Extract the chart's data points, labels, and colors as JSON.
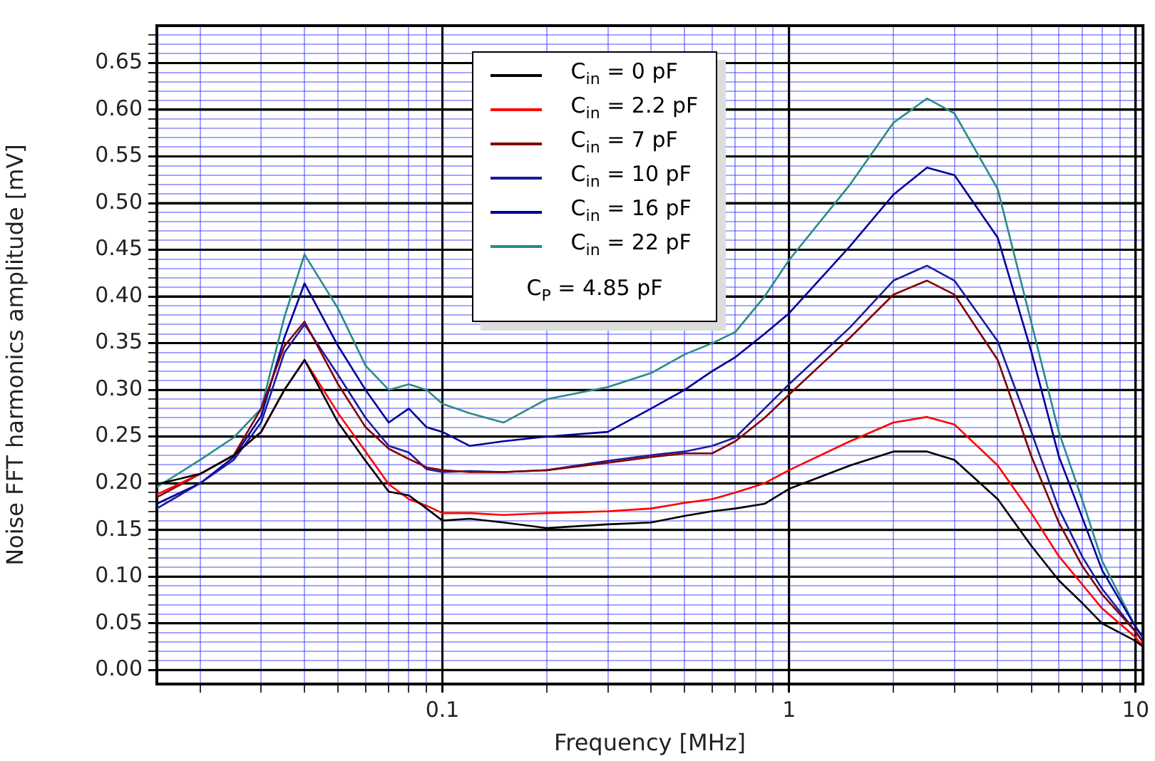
{
  "chart_data": {
    "type": "line",
    "xlabel": "Frequency [MHz]",
    "ylabel": "Noise FFT harmonics amplitude [mV]",
    "log": "x",
    "grid": true,
    "legend": "top",
    "marker": "none",
    "line_style": "solid",
    "annotations": [
      "C$_{P}$ = 4.85 pF"
    ],
    "xlim": [
      0.015,
      10.5
    ],
    "ylim": [
      -0.015,
      0.69
    ],
    "xticks": [
      {
        "value": 0.02,
        "label": null
      },
      {
        "value": 0.03,
        "label": null
      },
      {
        "value": 0.04,
        "label": null
      },
      {
        "value": 0.05,
        "label": null
      },
      {
        "value": 0.06,
        "label": null
      },
      {
        "value": 0.07,
        "label": null
      },
      {
        "value": 0.08,
        "label": null
      },
      {
        "value": 0.09,
        "label": null
      },
      0.1,
      {
        "value": 0.2,
        "label": null
      },
      {
        "value": 0.3,
        "label": null
      },
      {
        "value": 0.4,
        "label": null
      },
      {
        "value": 0.5,
        "label": null
      },
      {
        "value": 0.6,
        "label": null
      },
      {
        "value": 0.7,
        "label": null
      },
      {
        "value": 0.8,
        "label": null
      },
      {
        "value": 0.9,
        "label": null
      },
      1,
      {
        "value": 2,
        "label": null
      },
      {
        "value": 3,
        "label": null
      },
      {
        "value": 4,
        "label": null
      },
      {
        "value": 5,
        "label": null
      },
      {
        "value": 6,
        "label": null
      },
      {
        "value": 7,
        "label": null
      },
      {
        "value": 8,
        "label": null
      },
      {
        "value": 9,
        "label": null
      },
      10
    ],
    "yticks": [
      {
        "value": 0,
        "label": "0.00"
      },
      {
        "value": 0.01,
        "label": null
      },
      {
        "value": 0.02,
        "label": null
      },
      {
        "value": 0.03,
        "label": null
      },
      {
        "value": 0.04,
        "label": null
      },
      {
        "value": 0.05,
        "label": "0.05"
      },
      {
        "value": 0.06,
        "label": null
      },
      {
        "value": 0.07,
        "label": null
      },
      {
        "value": 0.08,
        "label": null
      },
      {
        "value": 0.09,
        "label": null
      },
      {
        "value": 0.1,
        "label": "0.10"
      },
      {
        "value": 0.11,
        "label": null
      },
      {
        "value": 0.12,
        "label": null
      },
      {
        "value": 0.13,
        "label": null
      },
      {
        "value": 0.14,
        "label": null
      },
      {
        "value": 0.15,
        "label": "0.15"
      },
      {
        "value": 0.16,
        "label": null
      },
      {
        "value": 0.17,
        "label": null
      },
      {
        "value": 0.18,
        "label": null
      },
      {
        "value": 0.19,
        "label": null
      },
      {
        "value": 0.2,
        "label": "0.20"
      },
      {
        "value": 0.21,
        "label": null
      },
      {
        "value": 0.22,
        "label": null
      },
      {
        "value": 0.23,
        "label": null
      },
      {
        "value": 0.24,
        "label": null
      },
      {
        "value": 0.25,
        "label": "0.25"
      },
      {
        "value": 0.26,
        "label": null
      },
      {
        "value": 0.27,
        "label": null
      },
      {
        "value": 0.28,
        "label": null
      },
      {
        "value": 0.29,
        "label": null
      },
      {
        "value": 0.3,
        "label": "0.30"
      },
      {
        "value": 0.31,
        "label": null
      },
      {
        "value": 0.32,
        "label": null
      },
      {
        "value": 0.33,
        "label": null
      },
      {
        "value": 0.34,
        "label": null
      },
      {
        "value": 0.35,
        "label": "0.35"
      },
      {
        "value": 0.36,
        "label": null
      },
      {
        "value": 0.37,
        "label": null
      },
      {
        "value": 0.38,
        "label": null
      },
      {
        "value": 0.39,
        "label": null
      },
      {
        "value": 0.4,
        "label": "0.40"
      },
      {
        "value": 0.41,
        "label": null
      },
      {
        "value": 0.42,
        "label": null
      },
      {
        "value": 0.43,
        "label": null
      },
      {
        "value": 0.44,
        "label": null
      },
      {
        "value": 0.45,
        "label": "0.45"
      },
      {
        "value": 0.46,
        "label": null
      },
      {
        "value": 0.47,
        "label": null
      },
      {
        "value": 0.48,
        "label": null
      },
      {
        "value": 0.49,
        "label": null
      },
      {
        "value": 0.5,
        "label": "0.50"
      },
      {
        "value": 0.51,
        "label": null
      },
      {
        "value": 0.52,
        "label": null
      },
      {
        "value": 0.53,
        "label": null
      },
      {
        "value": 0.54,
        "label": null
      },
      {
        "value": 0.55,
        "label": "0.55"
      },
      {
        "value": 0.56,
        "label": null
      },
      {
        "value": 0.57,
        "label": null
      },
      {
        "value": 0.58,
        "label": null
      },
      {
        "value": 0.59,
        "label": null
      },
      {
        "value": 0.6,
        "label": "0.60"
      },
      {
        "value": 0.61,
        "label": null
      },
      {
        "value": 0.62,
        "label": null
      },
      {
        "value": 0.63,
        "label": null
      },
      {
        "value": 0.64,
        "label": null
      },
      {
        "value": 0.65,
        "label": "0.65"
      },
      {
        "value": 0.66,
        "label": null
      },
      {
        "value": 0.67,
        "label": null
      },
      {
        "value": 0.68,
        "label": null
      }
    ],
    "x": [
      0.015,
      0.02,
      0.025,
      0.03,
      0.035,
      0.04,
      0.05,
      0.06,
      0.07,
      0.08,
      0.09,
      0.1,
      0.12,
      0.15,
      0.2,
      0.3,
      0.4,
      0.5,
      0.6,
      0.7,
      0.85,
      1,
      1.5,
      2,
      2.5,
      3,
      4,
      5,
      6,
      7,
      8,
      10,
      10.5
    ],
    "series": [
      {
        "name": "C$_{in}$ = 0 pF",
        "color": "#000000",
        "values": [
          0.199,
          0.21,
          0.23,
          0.255,
          0.3,
          0.332,
          0.265,
          0.224,
          0.191,
          0.187,
          0.173,
          0.16,
          0.162,
          0.158,
          0.152,
          0.156,
          0.158,
          0.165,
          0.17,
          0.173,
          0.178,
          0.194,
          0.219,
          0.234,
          0.234,
          0.225,
          0.183,
          0.133,
          0.096,
          0.072,
          0.05,
          0.031,
          0.025
        ]
      },
      {
        "name": "C$_{in}$ = 2.2 pF",
        "color": "#ff0000",
        "values": [
          0.188,
          0.21,
          0.23,
          0.255,
          0.3,
          0.332,
          0.275,
          0.234,
          0.199,
          0.183,
          0.176,
          0.168,
          0.168,
          0.166,
          0.168,
          0.17,
          0.173,
          0.179,
          0.183,
          0.19,
          0.2,
          0.214,
          0.245,
          0.265,
          0.271,
          0.263,
          0.219,
          0.168,
          0.122,
          0.092,
          0.066,
          0.035,
          0.025
        ]
      },
      {
        "name": "C$_{in}$ = 7 pF",
        "color": "#800000",
        "values": [
          0.185,
          0.21,
          0.23,
          0.28,
          0.347,
          0.373,
          0.306,
          0.26,
          0.237,
          0.226,
          0.217,
          0.214,
          0.212,
          0.212,
          0.214,
          0.222,
          0.228,
          0.232,
          0.232,
          0.245,
          0.27,
          0.295,
          0.356,
          0.402,
          0.417,
          0.402,
          0.332,
          0.229,
          0.158,
          0.112,
          0.081,
          0.041,
          0.03
        ]
      },
      {
        "name": "C$_{in}$ = 10 pF",
        "color": "#1c1c9c",
        "values": [
          0.173,
          0.2,
          0.225,
          0.265,
          0.34,
          0.37,
          0.316,
          0.27,
          0.24,
          0.233,
          0.215,
          0.212,
          0.213,
          0.212,
          0.214,
          0.224,
          0.23,
          0.234,
          0.24,
          0.249,
          0.28,
          0.306,
          0.367,
          0.417,
          0.433,
          0.417,
          0.352,
          0.255,
          0.173,
          0.122,
          0.087,
          0.041,
          0.03
        ]
      },
      {
        "name": "C$_{in}$ = 16 pF",
        "color": "#00009a",
        "values": [
          0.178,
          0.2,
          0.228,
          0.272,
          0.356,
          0.414,
          0.347,
          0.3,
          0.265,
          0.28,
          0.26,
          0.255,
          0.24,
          0.245,
          0.25,
          0.255,
          0.28,
          0.3,
          0.32,
          0.335,
          0.36,
          0.382,
          0.454,
          0.509,
          0.538,
          0.53,
          0.463,
          0.341,
          0.229,
          0.164,
          0.107,
          0.046,
          0.035
        ]
      },
      {
        "name": "C$_{in}$ = 22 pF",
        "color": "#2a8a8a",
        "values": [
          0.196,
          0.225,
          0.249,
          0.28,
          0.378,
          0.445,
          0.387,
          0.326,
          0.3,
          0.306,
          0.3,
          0.285,
          0.275,
          0.265,
          0.29,
          0.303,
          0.318,
          0.338,
          0.35,
          0.362,
          0.4,
          0.439,
          0.52,
          0.586,
          0.612,
          0.596,
          0.515,
          0.372,
          0.255,
          0.183,
          0.117,
          0.046,
          0.035
        ]
      }
    ]
  }
}
